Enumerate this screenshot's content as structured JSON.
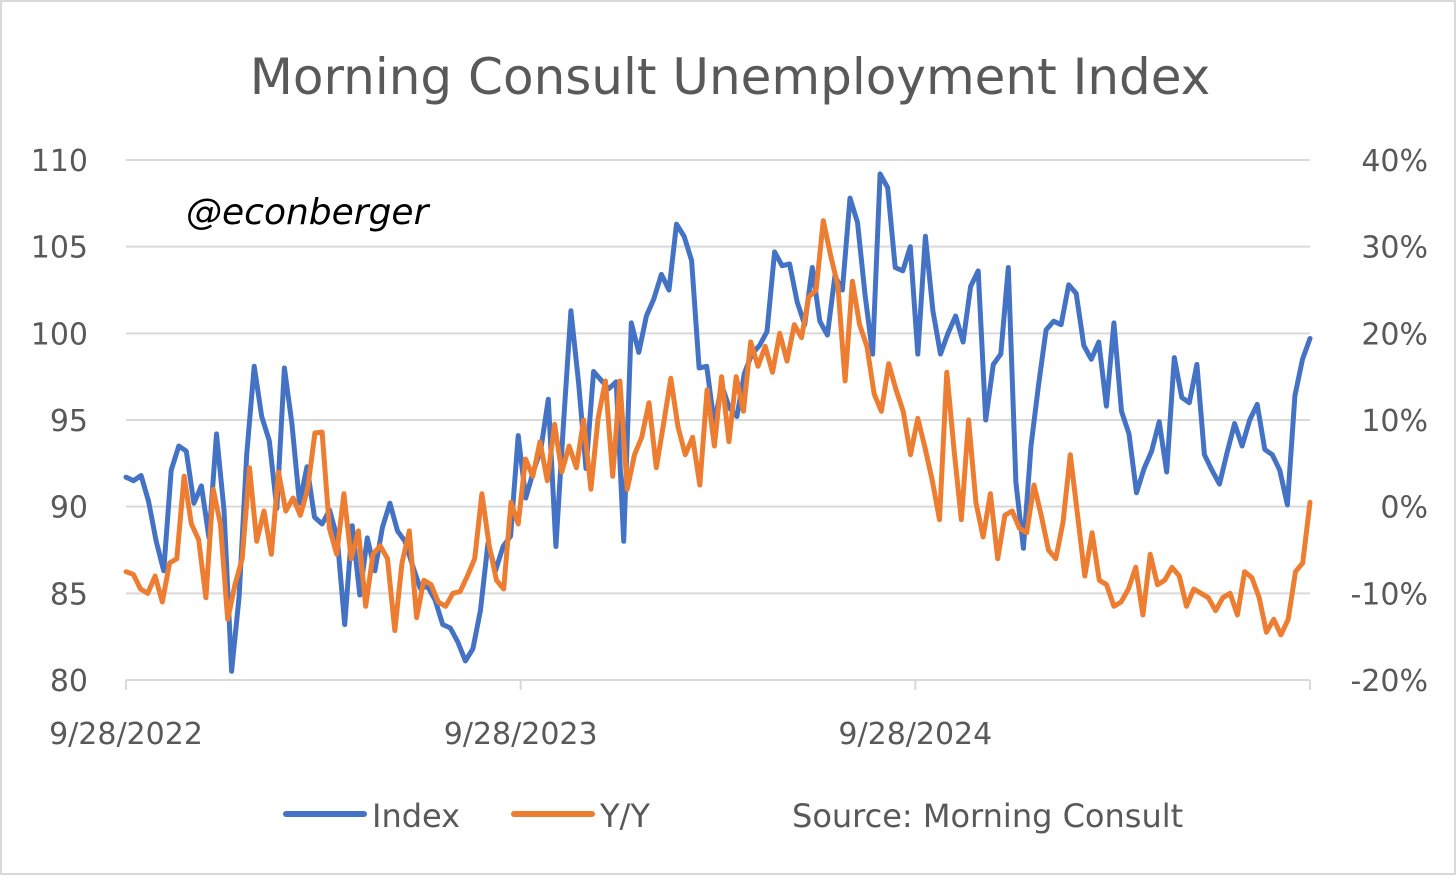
{
  "chart_data": {
    "type": "line",
    "title": "Morning Consult Unemployment Index",
    "watermark": "@econberger",
    "source": "Source: Morning Consult",
    "x_ticks": [
      "9/28/2022",
      "9/28/2023",
      "9/28/2024"
    ],
    "x_tick_positions": [
      0,
      52,
      104
    ],
    "x_range": [
      0,
      156
    ],
    "y_left": {
      "ylim": [
        80,
        110
      ],
      "ticks": [
        "80",
        "85",
        "90",
        "95",
        "100",
        "105",
        "110"
      ],
      "tick_values": [
        80,
        85,
        90,
        95,
        100,
        105,
        110
      ]
    },
    "y_right": {
      "ylim": [
        -20,
        40
      ],
      "ticks": [
        "-20%",
        "-10%",
        "0%",
        "10%",
        "20%",
        "30%",
        "40%"
      ],
      "tick_values": [
        -20,
        -10,
        0,
        10,
        20,
        30,
        40
      ]
    },
    "grid": true,
    "legend": "bottom",
    "colors": {
      "index": "#4472c4",
      "yy": "#ed7d31"
    },
    "series": [
      {
        "name": "Index",
        "axis": "left",
        "values": [
          91.7,
          91.5,
          91.8,
          90.3,
          88.0,
          86.3,
          92.1,
          93.5,
          93.2,
          90.2,
          91.2,
          88.2,
          94.2,
          89.8,
          80.5,
          84.8,
          93.0,
          98.1,
          95.2,
          93.8,
          89.9,
          98.0,
          94.8,
          90.2,
          92.3,
          89.4,
          89.0,
          89.8,
          88.2,
          83.2,
          88.9,
          84.9,
          88.2,
          86.3,
          88.8,
          90.2,
          88.6,
          88.0,
          86.6,
          85.3,
          85.4,
          84.6,
          83.2,
          83.0,
          82.2,
          81.1,
          81.8,
          84.0,
          87.9,
          86.3,
          87.7,
          88.3,
          94.1,
          90.5,
          92.0,
          93.3,
          96.2,
          87.7,
          94.7,
          101.3,
          97.2,
          92.2,
          97.8,
          97.3,
          96.8,
          97.2,
          88.0,
          100.6,
          98.9,
          101.0,
          102.0,
          103.4,
          102.5,
          106.3,
          105.6,
          104.2,
          98.0,
          98.1,
          94.8,
          97.0,
          95.7,
          95.2,
          97.7,
          98.8,
          99.3,
          100.1,
          104.7,
          103.9,
          104.0,
          101.8,
          100.5,
          103.8,
          100.7,
          99.9,
          103.3,
          102.5,
          107.8,
          106.4,
          102.2,
          98.8,
          109.2,
          108.4,
          103.8,
          103.6,
          105.0,
          98.8,
          105.6,
          101.3,
          98.8,
          100.0,
          101.0,
          99.5,
          102.7,
          103.6,
          95.0,
          98.2,
          98.8,
          103.8,
          91.4,
          87.6,
          93.5,
          97.0,
          100.2,
          100.7,
          100.5,
          102.8,
          102.3,
          99.3,
          98.5,
          99.5,
          95.8,
          100.6,
          95.5,
          94.2,
          90.8,
          92.2,
          93.2,
          94.9,
          92.0,
          98.6,
          96.3,
          96.0,
          98.2,
          93.0,
          92.1,
          91.3,
          93.1,
          94.8,
          93.5,
          95.0,
          95.9,
          93.3,
          93.0,
          92.1,
          90.1,
          96.4,
          98.5,
          99.7
        ]
      },
      {
        "name": "Y/Y",
        "axis": "right",
        "values": [
          -7.5,
          -7.8,
          -9.5,
          -10.0,
          -8.0,
          -11.0,
          -6.5,
          -6.0,
          3.5,
          -2.0,
          -3.8,
          -10.5,
          2.0,
          -2.0,
          -13.0,
          -9.0,
          -6.0,
          4.5,
          -4.0,
          -0.5,
          -5.5,
          4.0,
          -0.5,
          1.0,
          -1.0,
          2.0,
          8.5,
          8.6,
          -2.5,
          -5.5,
          1.5,
          -6.0,
          -2.8,
          -11.5,
          -5.5,
          -4.5,
          -6.0,
          -14.3,
          -6.5,
          -2.8,
          -12.8,
          -8.5,
          -9.0,
          -11.0,
          -11.5,
          -10.0,
          -9.8,
          -8.0,
          -6.0,
          1.5,
          -4.5,
          -8.5,
          -9.5,
          0.5,
          -2.0,
          5.5,
          3.5,
          7.5,
          3.0,
          9.5,
          4.0,
          7.0,
          4.5,
          10.0,
          2.0,
          10.2,
          14.5,
          3.5,
          14.5,
          2.0,
          6.0,
          8.0,
          12.0,
          4.5,
          9.5,
          14.8,
          9.2,
          6.0,
          8.0,
          2.5,
          13.5,
          7.0,
          15.0,
          7.5,
          15.0,
          11.0,
          19.0,
          16.2,
          18.5,
          15.5,
          20.0,
          16.8,
          21.0,
          19.5,
          24.2,
          25.0,
          33.0,
          29.0,
          25.5,
          14.5,
          26.0,
          21.0,
          18.5,
          13.0,
          11.0,
          16.5,
          13.5,
          11.0,
          6.0,
          10.2,
          6.8,
          3.0,
          -1.5,
          15.5,
          6.5,
          -1.5,
          10.0,
          0.5,
          -3.5,
          1.5,
          -6.0,
          -1.0,
          -0.5,
          -2.5,
          -3.0,
          2.5,
          -1.0,
          -5.0,
          -6.0,
          -1.8,
          6.0,
          -1.0,
          -8.0,
          -3.0,
          -8.5,
          -9.0,
          -11.5,
          -11.0,
          -9.5,
          -7.0,
          -12.5,
          -5.5,
          -9.0,
          -8.5,
          -7.0,
          -8.0,
          -11.5,
          -9.5,
          -10.0,
          -10.5,
          -12.0,
          -10.5,
          -10.0,
          -12.5,
          -7.5,
          -8.2,
          -10.5,
          -14.5,
          -13.0,
          -14.8,
          -13.0,
          -7.5,
          -6.5,
          0.5
        ]
      }
    ]
  }
}
